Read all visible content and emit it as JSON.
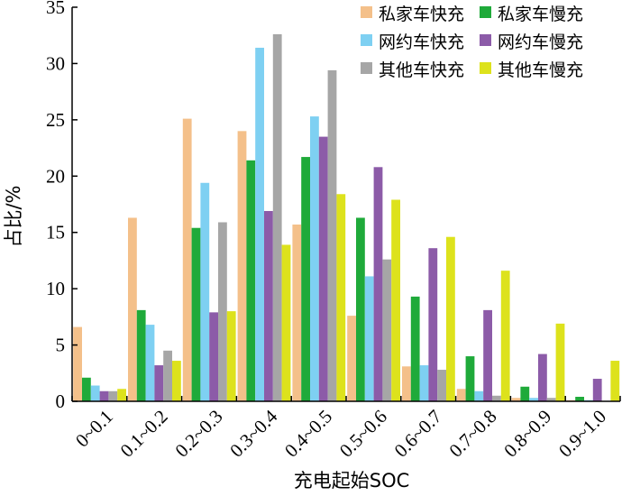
{
  "chart_data": {
    "type": "bar",
    "title": "",
    "xlabel": "充电起始SOC",
    "ylabel": "占比/%",
    "ylim": [
      0,
      35
    ],
    "yticks": [
      0,
      5,
      10,
      15,
      20,
      25,
      30,
      35
    ],
    "grid": false,
    "legend_position": "top-right",
    "categories": [
      "0~0.1",
      "0.1~0.2",
      "0.2~0.3",
      "0.3~0.4",
      "0.4~0.5",
      "0.5~0.6",
      "0.6~0.7",
      "0.7~0.8",
      "0.8~0.9",
      "0.9~1.0"
    ],
    "series": [
      {
        "name": "私家车快充",
        "color": "#F4C08A",
        "values": [
          6.6,
          16.3,
          25.1,
          24.0,
          15.7,
          7.6,
          3.1,
          1.1,
          0.3,
          0.1
        ]
      },
      {
        "name": "私家车慢充",
        "color": "#1FAA3A",
        "values": [
          2.1,
          8.1,
          15.4,
          21.4,
          21.7,
          16.3,
          9.3,
          4.0,
          1.3,
          0.4
        ]
      },
      {
        "name": "网约车快充",
        "color": "#7ED0F2",
        "values": [
          1.4,
          6.8,
          19.4,
          31.4,
          25.3,
          11.1,
          3.2,
          0.9,
          0.3,
          0.1
        ]
      },
      {
        "name": "网约车慢充",
        "color": "#8C5BA8",
        "values": [
          0.9,
          3.2,
          7.9,
          16.9,
          23.5,
          20.8,
          13.6,
          8.1,
          4.2,
          2.0
        ]
      },
      {
        "name": "其他车快充",
        "color": "#A6A6A6",
        "values": [
          0.9,
          4.5,
          15.9,
          32.6,
          29.4,
          12.6,
          2.8,
          0.5,
          0.3,
          0.0
        ]
      },
      {
        "name": "其他车慢充",
        "color": "#DDE21C",
        "values": [
          1.1,
          3.6,
          8.0,
          13.9,
          18.4,
          17.9,
          14.6,
          11.6,
          6.9,
          3.6
        ]
      }
    ]
  }
}
